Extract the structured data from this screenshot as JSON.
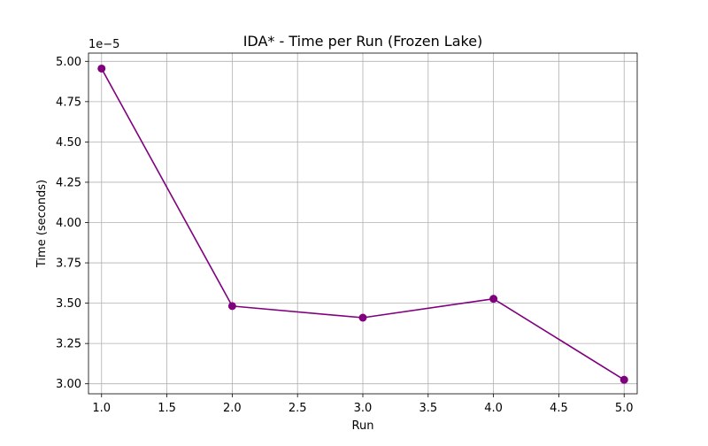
{
  "chart_data": {
    "type": "line",
    "title": "IDA* - Time per Run (Frozen Lake)",
    "xlabel": "Run",
    "ylabel": "Time (seconds)",
    "y_offset_label": "1e−5",
    "xlim": [
      0.9,
      5.1
    ],
    "ylim": [
      2.938,
      5.051
    ],
    "x_ticks": [
      1.0,
      1.5,
      2.0,
      2.5,
      3.0,
      3.5,
      4.0,
      4.5,
      5.0
    ],
    "x_tick_labels": [
      "1.0",
      "1.5",
      "2.0",
      "2.5",
      "3.0",
      "3.5",
      "4.0",
      "4.5",
      "5.0"
    ],
    "y_ticks": [
      3.0,
      3.25,
      3.5,
      3.75,
      4.0,
      4.25,
      4.5,
      4.75,
      5.0
    ],
    "y_tick_labels": [
      "3.00",
      "3.25",
      "3.50",
      "3.75",
      "4.00",
      "4.25",
      "4.50",
      "4.75",
      "5.00"
    ],
    "grid": true,
    "series": [
      {
        "color": "#800080",
        "marker": "circle",
        "x": [
          1.0,
          2.0,
          3.0,
          4.0,
          5.0
        ],
        "y": [
          4.955,
          3.482,
          3.41,
          3.527,
          3.025
        ]
      }
    ]
  }
}
